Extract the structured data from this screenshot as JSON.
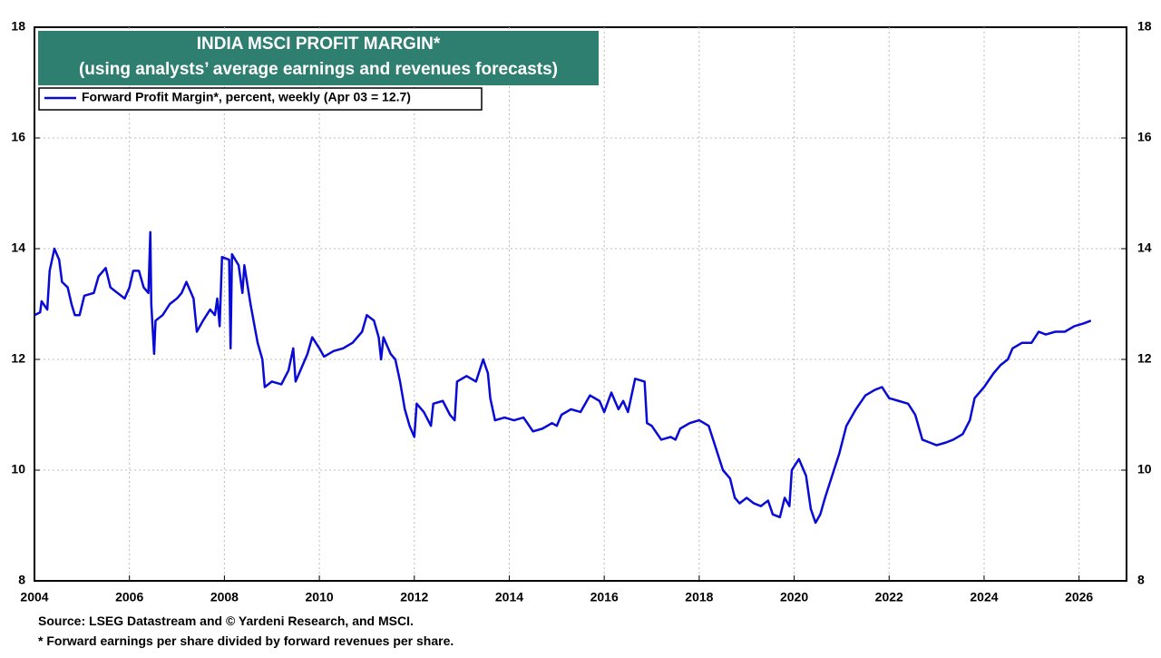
{
  "chart_data": {
    "type": "line",
    "title": "INDIA MSCI PROFIT MARGIN*",
    "subtitle": "(using analysts’ average earnings and revenues forecasts)",
    "source": "Source: LSEG Datastream and © Yardeni Research, and MSCI.",
    "note": "* Forward earnings per share divided by forward revenues per share.",
    "xlim": [
      2004,
      2027
    ],
    "xticks": [
      2004,
      2006,
      2008,
      2010,
      2012,
      2014,
      2016,
      2018,
      2020,
      2022,
      2024,
      2026
    ],
    "ylim": [
      8,
      18
    ],
    "yticks": [
      8,
      10,
      12,
      14,
      16,
      18
    ],
    "y2lim": [
      8,
      18
    ],
    "y2ticks": [
      8,
      10,
      12,
      14,
      16,
      18
    ],
    "grid": true,
    "legend": "top-left",
    "series": [
      {
        "name": "Forward Profit Margin*, percent, weekly (Apr 03 = 12.7)",
        "color": "#0a0ad6",
        "x": [
          2004.0,
          2004.12,
          2004.15,
          2004.27,
          2004.32,
          2004.42,
          2004.52,
          2004.58,
          2004.7,
          2004.78,
          2004.85,
          2004.95,
          2005.05,
          2005.25,
          2005.35,
          2005.5,
          2005.6,
          2005.75,
          2005.9,
          2006.0,
          2006.08,
          2006.2,
          2006.3,
          2006.4,
          2006.44,
          2006.46,
          2006.52,
          2006.55,
          2006.7,
          2006.85,
          2007.0,
          2007.1,
          2007.2,
          2007.35,
          2007.42,
          2007.55,
          2007.7,
          2007.8,
          2007.85,
          2007.9,
          2007.95,
          2008.1,
          2008.13,
          2008.16,
          2008.3,
          2008.38,
          2008.42,
          2008.55,
          2008.7,
          2008.8,
          2008.85,
          2009.0,
          2009.2,
          2009.35,
          2009.45,
          2009.5,
          2009.6,
          2009.75,
          2009.85,
          2010.0,
          2010.1,
          2010.3,
          2010.5,
          2010.7,
          2010.9,
          2011.0,
          2011.15,
          2011.25,
          2011.3,
          2011.35,
          2011.5,
          2011.6,
          2011.7,
          2011.8,
          2011.9,
          2012.0,
          2012.05,
          2012.2,
          2012.35,
          2012.4,
          2012.6,
          2012.75,
          2012.85,
          2012.9,
          2013.1,
          2013.3,
          2013.45,
          2013.55,
          2013.6,
          2013.7,
          2013.9,
          2014.1,
          2014.3,
          2014.5,
          2014.7,
          2014.9,
          2015.0,
          2015.1,
          2015.3,
          2015.5,
          2015.7,
          2015.9,
          2016.0,
          2016.15,
          2016.3,
          2016.4,
          2016.5,
          2016.65,
          2016.85,
          2016.9,
          2017.0,
          2017.2,
          2017.4,
          2017.5,
          2017.6,
          2017.8,
          2018.0,
          2018.2,
          2018.35,
          2018.5,
          2018.65,
          2018.75,
          2018.85,
          2019.0,
          2019.15,
          2019.3,
          2019.45,
          2019.55,
          2019.7,
          2019.8,
          2019.9,
          2019.95,
          2020.1,
          2020.25,
          2020.35,
          2020.45,
          2020.55,
          2020.65,
          2020.8,
          2020.95,
          2021.1,
          2021.3,
          2021.5,
          2021.7,
          2021.85,
          2022.0,
          2022.2,
          2022.4,
          2022.55,
          2022.7,
          2022.85,
          2023.0,
          2023.2,
          2023.35,
          2023.55,
          2023.7,
          2023.8,
          2024.0,
          2024.2,
          2024.35,
          2024.5,
          2024.6,
          2024.8,
          2025.0,
          2025.15,
          2025.3,
          2025.5,
          2025.7,
          2025.9,
          2026.1,
          2026.25
        ],
        "values": [
          12.8,
          12.85,
          13.05,
          12.9,
          13.6,
          14.0,
          13.8,
          13.4,
          13.3,
          13.0,
          12.8,
          12.8,
          13.15,
          13.2,
          13.5,
          13.65,
          13.3,
          13.2,
          13.1,
          13.3,
          13.6,
          13.6,
          13.3,
          13.2,
          14.3,
          13.0,
          12.1,
          12.7,
          12.8,
          13.0,
          13.1,
          13.2,
          13.4,
          13.1,
          12.5,
          12.7,
          12.9,
          12.8,
          13.1,
          12.6,
          13.85,
          13.8,
          12.2,
          13.9,
          13.7,
          13.2,
          13.7,
          13.0,
          12.3,
          12.0,
          11.5,
          11.6,
          11.55,
          11.8,
          12.2,
          11.6,
          11.8,
          12.1,
          12.4,
          12.2,
          12.05,
          12.15,
          12.2,
          12.3,
          12.5,
          12.8,
          12.7,
          12.4,
          12.0,
          12.4,
          12.1,
          12.0,
          11.6,
          11.1,
          10.8,
          10.6,
          11.2,
          11.05,
          10.8,
          11.2,
          11.25,
          11.0,
          10.9,
          11.6,
          11.7,
          11.6,
          12.0,
          11.75,
          11.3,
          10.9,
          10.95,
          10.9,
          10.95,
          10.7,
          10.75,
          10.85,
          10.8,
          11.0,
          11.1,
          11.05,
          11.35,
          11.25,
          11.05,
          11.4,
          11.1,
          11.25,
          11.05,
          11.65,
          11.6,
          10.85,
          10.8,
          10.55,
          10.6,
          10.55,
          10.75,
          10.85,
          10.9,
          10.8,
          10.4,
          10.0,
          9.85,
          9.5,
          9.4,
          9.5,
          9.4,
          9.35,
          9.45,
          9.2,
          9.15,
          9.5,
          9.35,
          10.0,
          10.2,
          9.9,
          9.3,
          9.05,
          9.2,
          9.5,
          9.9,
          10.3,
          10.8,
          11.1,
          11.35,
          11.45,
          11.5,
          11.3,
          11.25,
          11.2,
          11.0,
          10.55,
          10.5,
          10.45,
          10.5,
          10.55,
          10.65,
          10.9,
          11.3,
          11.5,
          11.75,
          11.9,
          12.0,
          12.2,
          12.3,
          12.3,
          12.5,
          12.45,
          12.5,
          12.5,
          12.6,
          12.65,
          12.7
        ]
      }
    ]
  }
}
